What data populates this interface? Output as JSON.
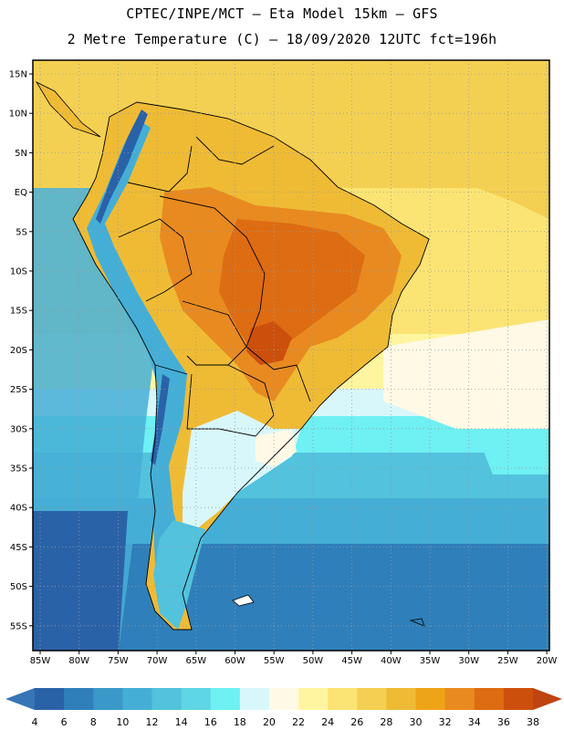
{
  "header": {
    "line1": "CPTEC/INPE/MCT –  Eta Model 15km – GFS",
    "line2": "2 Metre Temperature (C) – 18/09/2020 12UTC fct=196h"
  },
  "map": {
    "region": "South America",
    "lat_labels": [
      "15N",
      "10N",
      "5N",
      "EQ",
      "5S",
      "10S",
      "15S",
      "20S",
      "25S",
      "30S",
      "35S",
      "40S",
      "45S",
      "50S",
      "55S"
    ],
    "lon_labels": [
      "85W",
      "80W",
      "75W",
      "70W",
      "65W",
      "60W",
      "55W",
      "50W",
      "45W",
      "40W",
      "35W",
      "30W",
      "25W",
      "20W"
    ]
  },
  "colorbar": {
    "labels": [
      "4",
      "6",
      "8",
      "10",
      "12",
      "14",
      "16",
      "18",
      "20",
      "22",
      "24",
      "26",
      "28",
      "30",
      "32",
      "34",
      "36",
      "38"
    ],
    "colors": [
      "#2a62a8",
      "#2f7fba",
      "#3a99c9",
      "#45aed6",
      "#52c2dd",
      "#5fd6e5",
      "#6ff0f2",
      "#d8f7fb",
      "#fff9e6",
      "#fff5a0",
      "#fbe474",
      "#f4d052",
      "#efbb35",
      "#efa418",
      "#e88a20",
      "#de6c12",
      "#cc4f0c"
    ],
    "low_color": "#3775b4",
    "high_color": "#bf4410"
  }
}
